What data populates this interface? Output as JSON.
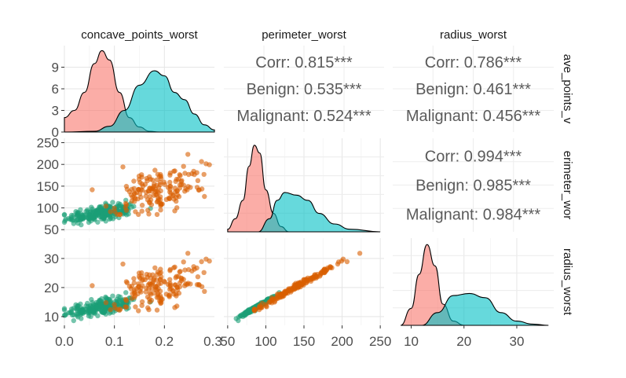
{
  "chart_data": {
    "type": "scatter-matrix",
    "variables": [
      "concave_points_worst",
      "perimeter_worst",
      "radius_worst"
    ],
    "strip_labels_top": [
      "concave_points_worst",
      "perimeter_worst",
      "radius_worst"
    ],
    "strip_labels_right": [
      "ave_points_v",
      "erimeter_wor",
      "radius_worst"
    ],
    "axes": {
      "concave_points_worst": {
        "range": [
          0.0,
          0.3
        ],
        "ticks": [
          0.0,
          0.1,
          0.2
        ],
        "tick_labels": [
          "0.0",
          "0.1",
          "0.2"
        ],
        "last_label": "0.3"
      },
      "perimeter_worst": {
        "range": [
          45,
          255
        ],
        "ticks": [
          50,
          100,
          150,
          200,
          250
        ],
        "tick_labels": [
          "50",
          "100",
          "150",
          "200",
          "250"
        ]
      },
      "radius_worst": {
        "range": [
          6.5,
          37
        ],
        "ticks": [
          10,
          20,
          30
        ],
        "tick_labels": [
          "10",
          "20",
          "30"
        ]
      }
    },
    "row_axes": {
      "concave_points_worst_density": {
        "range": [
          0,
          12
        ],
        "ticks": [
          0,
          3,
          6,
          9
        ],
        "tick_labels": [
          "0",
          "3",
          "6",
          "9"
        ]
      },
      "perimeter_worst": {
        "range": [
          45,
          260
        ],
        "ticks": [
          50,
          100,
          150,
          200,
          250
        ],
        "tick_labels": [
          "50",
          "100",
          "150",
          "200",
          "250"
        ]
      },
      "radius_worst": {
        "range": [
          7,
          37
        ],
        "ticks": [
          10,
          20,
          30
        ],
        "tick_labels": [
          "10",
          "20",
          "30"
        ]
      }
    },
    "groups": [
      {
        "name": "Benign",
        "density_color": "#F8766D",
        "point_color": "#1B9E77"
      },
      {
        "name": "Malignant",
        "density_color": "#00BFC4",
        "point_color": "#D95F02"
      }
    ],
    "correlations": [
      {
        "pair": [
          "concave_points_worst",
          "perimeter_worst"
        ],
        "lines": [
          "Corr: 0.815***",
          "Benign: 0.535***",
          "Malignant: 0.524***"
        ]
      },
      {
        "pair": [
          "concave_points_worst",
          "radius_worst"
        ],
        "lines": [
          "Corr: 0.786***",
          "Benign: 0.461***",
          "Malignant: 0.456***"
        ]
      },
      {
        "pair": [
          "perimeter_worst",
          "radius_worst"
        ],
        "lines": [
          "Corr: 0.994***",
          "Benign: 0.985***",
          "Malignant: 0.984***"
        ]
      }
    ],
    "densities": {
      "concave_points_worst": {
        "Benign": [
          [
            0.0,
            2.0
          ],
          [
            0.02,
            3.0
          ],
          [
            0.04,
            5.5
          ],
          [
            0.06,
            9.5
          ],
          [
            0.075,
            11.3
          ],
          [
            0.09,
            10.0
          ],
          [
            0.11,
            5.5
          ],
          [
            0.13,
            2.0
          ],
          [
            0.15,
            0.7
          ],
          [
            0.17,
            0.1
          ],
          [
            0.19,
            0.0
          ]
        ],
        "Malignant": [
          [
            0.0,
            0.0
          ],
          [
            0.06,
            0.1
          ],
          [
            0.09,
            0.8
          ],
          [
            0.12,
            3.0
          ],
          [
            0.15,
            6.5
          ],
          [
            0.18,
            8.5
          ],
          [
            0.2,
            7.8
          ],
          [
            0.22,
            5.5
          ],
          [
            0.24,
            4.5
          ],
          [
            0.26,
            2.5
          ],
          [
            0.28,
            1.0
          ],
          [
            0.3,
            0.3
          ]
        ]
      },
      "perimeter_worst": {
        "Benign": [
          [
            50,
            0.001
          ],
          [
            60,
            0.005
          ],
          [
            70,
            0.012
          ],
          [
            78,
            0.025
          ],
          [
            85,
            0.033
          ],
          [
            92,
            0.03
          ],
          [
            100,
            0.016
          ],
          [
            110,
            0.007
          ],
          [
            120,
            0.002
          ],
          [
            130,
            0.0
          ]
        ],
        "Malignant": [
          [
            90,
            0.0
          ],
          [
            105,
            0.005
          ],
          [
            115,
            0.012
          ],
          [
            125,
            0.015
          ],
          [
            140,
            0.014
          ],
          [
            155,
            0.012
          ],
          [
            170,
            0.007
          ],
          [
            190,
            0.003
          ],
          [
            210,
            0.001
          ],
          [
            250,
            0.0
          ]
        ]
      },
      "radius_worst": {
        "Benign": [
          [
            8,
            0.0
          ],
          [
            10,
            0.04
          ],
          [
            11.5,
            0.12
          ],
          [
            13,
            0.19
          ],
          [
            14.5,
            0.14
          ],
          [
            16,
            0.05
          ],
          [
            18,
            0.01
          ],
          [
            20,
            0.0
          ]
        ],
        "Malignant": [
          [
            12,
            0.0
          ],
          [
            15,
            0.03
          ],
          [
            18,
            0.07
          ],
          [
            21,
            0.075
          ],
          [
            24,
            0.065
          ],
          [
            27,
            0.03
          ],
          [
            30,
            0.01
          ],
          [
            33,
            0.003
          ],
          [
            36,
            0.0
          ]
        ]
      }
    }
  }
}
